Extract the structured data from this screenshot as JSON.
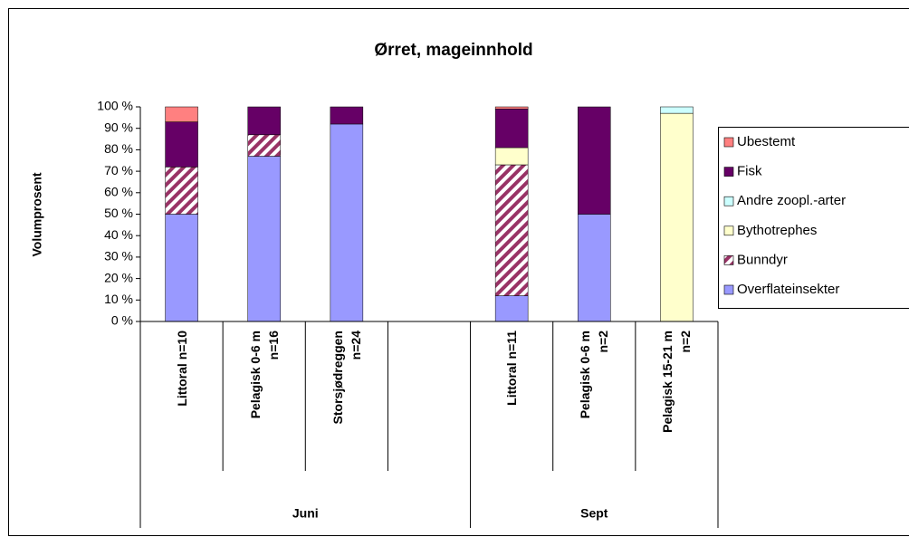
{
  "chart_data": {
    "type": "stacked-bar",
    "title": "Ørret, mageinnhold",
    "y_label": "Volumprosent",
    "categories": [
      "Littoral n=10",
      "Pelagisk 0-6 m n=16",
      "Storsjødreggen n=24",
      null,
      "Littoral n=11",
      "Pelagisk 0-6 m n=2",
      "Pelagisk 15-21 m n=2"
    ],
    "groups": [
      {
        "name": "Juni",
        "first": 0,
        "last": 3
      },
      {
        "name": "Sept",
        "first": 4,
        "last": 6
      }
    ],
    "series": [
      {
        "name": "Overflateinsekter",
        "color": "#9999ff",
        "values": [
          50,
          77,
          92,
          null,
          12,
          50,
          0
        ]
      },
      {
        "name": "Bunndyr",
        "color": "#993366",
        "pattern": "diagonal",
        "values": [
          22,
          10,
          0,
          null,
          61,
          0,
          0
        ]
      },
      {
        "name": "Bythotrephes",
        "color": "#ffffcc",
        "values": [
          0,
          0,
          0,
          null,
          8,
          0,
          97
        ]
      },
      {
        "name": "Andre zoopl.-arter",
        "color": "#ccffff",
        "values": [
          0,
          0,
          0,
          null,
          0,
          0,
          3
        ]
      },
      {
        "name": "Fisk",
        "color": "#660066",
        "values": [
          21,
          13,
          8,
          null,
          18,
          50,
          0
        ]
      },
      {
        "name": "Ubestemt",
        "color": "#ff8080",
        "values": [
          7,
          0,
          0,
          null,
          1,
          0,
          0
        ]
      }
    ],
    "ylim": [
      0,
      100
    ],
    "yticks": [
      {
        "value": 0,
        "label": "0 %"
      },
      {
        "value": 10,
        "label": "10 %"
      },
      {
        "value": 20,
        "label": "20 %"
      },
      {
        "value": 30,
        "label": "30 %"
      },
      {
        "value": 40,
        "label": "40 %"
      },
      {
        "value": 50,
        "label": "50 %"
      },
      {
        "value": 60,
        "label": "60 %"
      },
      {
        "value": 70,
        "label": "70 %"
      },
      {
        "value": 80,
        "label": "80 %"
      },
      {
        "value": 90,
        "label": "90 %"
      },
      {
        "value": 100,
        "label": "100 %"
      }
    ],
    "grid": false,
    "legend": "right"
  }
}
